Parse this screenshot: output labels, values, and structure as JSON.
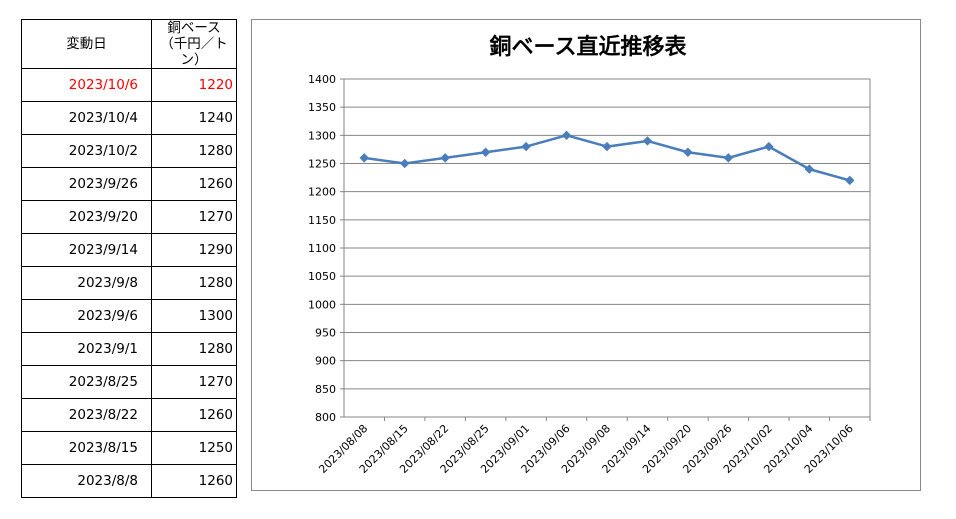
{
  "table": {
    "header_date": "変動日",
    "header_price_line1": "銅ベース",
    "header_price_line2": "（千円／トン）",
    "highlight_color": "#ff0000",
    "rows": [
      {
        "date": "2023/10/6",
        "price": "1220"
      },
      {
        "date": "2023/10/4",
        "price": "1240"
      },
      {
        "date": "2023/10/2",
        "price": "1280"
      },
      {
        "date": "2023/9/26",
        "price": "1260"
      },
      {
        "date": "2023/9/20",
        "price": "1270"
      },
      {
        "date": "2023/9/14",
        "price": "1290"
      },
      {
        "date": "2023/9/8",
        "price": "1280"
      },
      {
        "date": "2023/9/6",
        "price": "1300"
      },
      {
        "date": "2023/9/1",
        "price": "1280"
      },
      {
        "date": "2023/8/25",
        "price": "1270"
      },
      {
        "date": "2023/8/22",
        "price": "1260"
      },
      {
        "date": "2023/8/15",
        "price": "1250"
      },
      {
        "date": "2023/8/8",
        "price": "1260"
      }
    ]
  },
  "chart_data": {
    "type": "line",
    "title": "銅ベース直近推移表",
    "categories": [
      "2023/08/08",
      "2023/08/15",
      "2023/08/22",
      "2023/08/25",
      "2023/09/01",
      "2023/09/06",
      "2023/09/08",
      "2023/09/14",
      "2023/09/20",
      "2023/09/26",
      "2023/10/02",
      "2023/10/04",
      "2023/10/06"
    ],
    "series": [
      {
        "values": [
          1260,
          1250,
          1260,
          1270,
          1280,
          1300,
          1280,
          1290,
          1270,
          1260,
          1280,
          1240,
          1220
        ],
        "color": "#4a7ebb"
      }
    ],
    "ylim": [
      800,
      1400
    ],
    "yticks": [
      800,
      850,
      900,
      950,
      1000,
      1050,
      1100,
      1150,
      1200,
      1250,
      1300,
      1350,
      1400
    ],
    "grid": true,
    "legend": "none",
    "marker": "diamond"
  }
}
